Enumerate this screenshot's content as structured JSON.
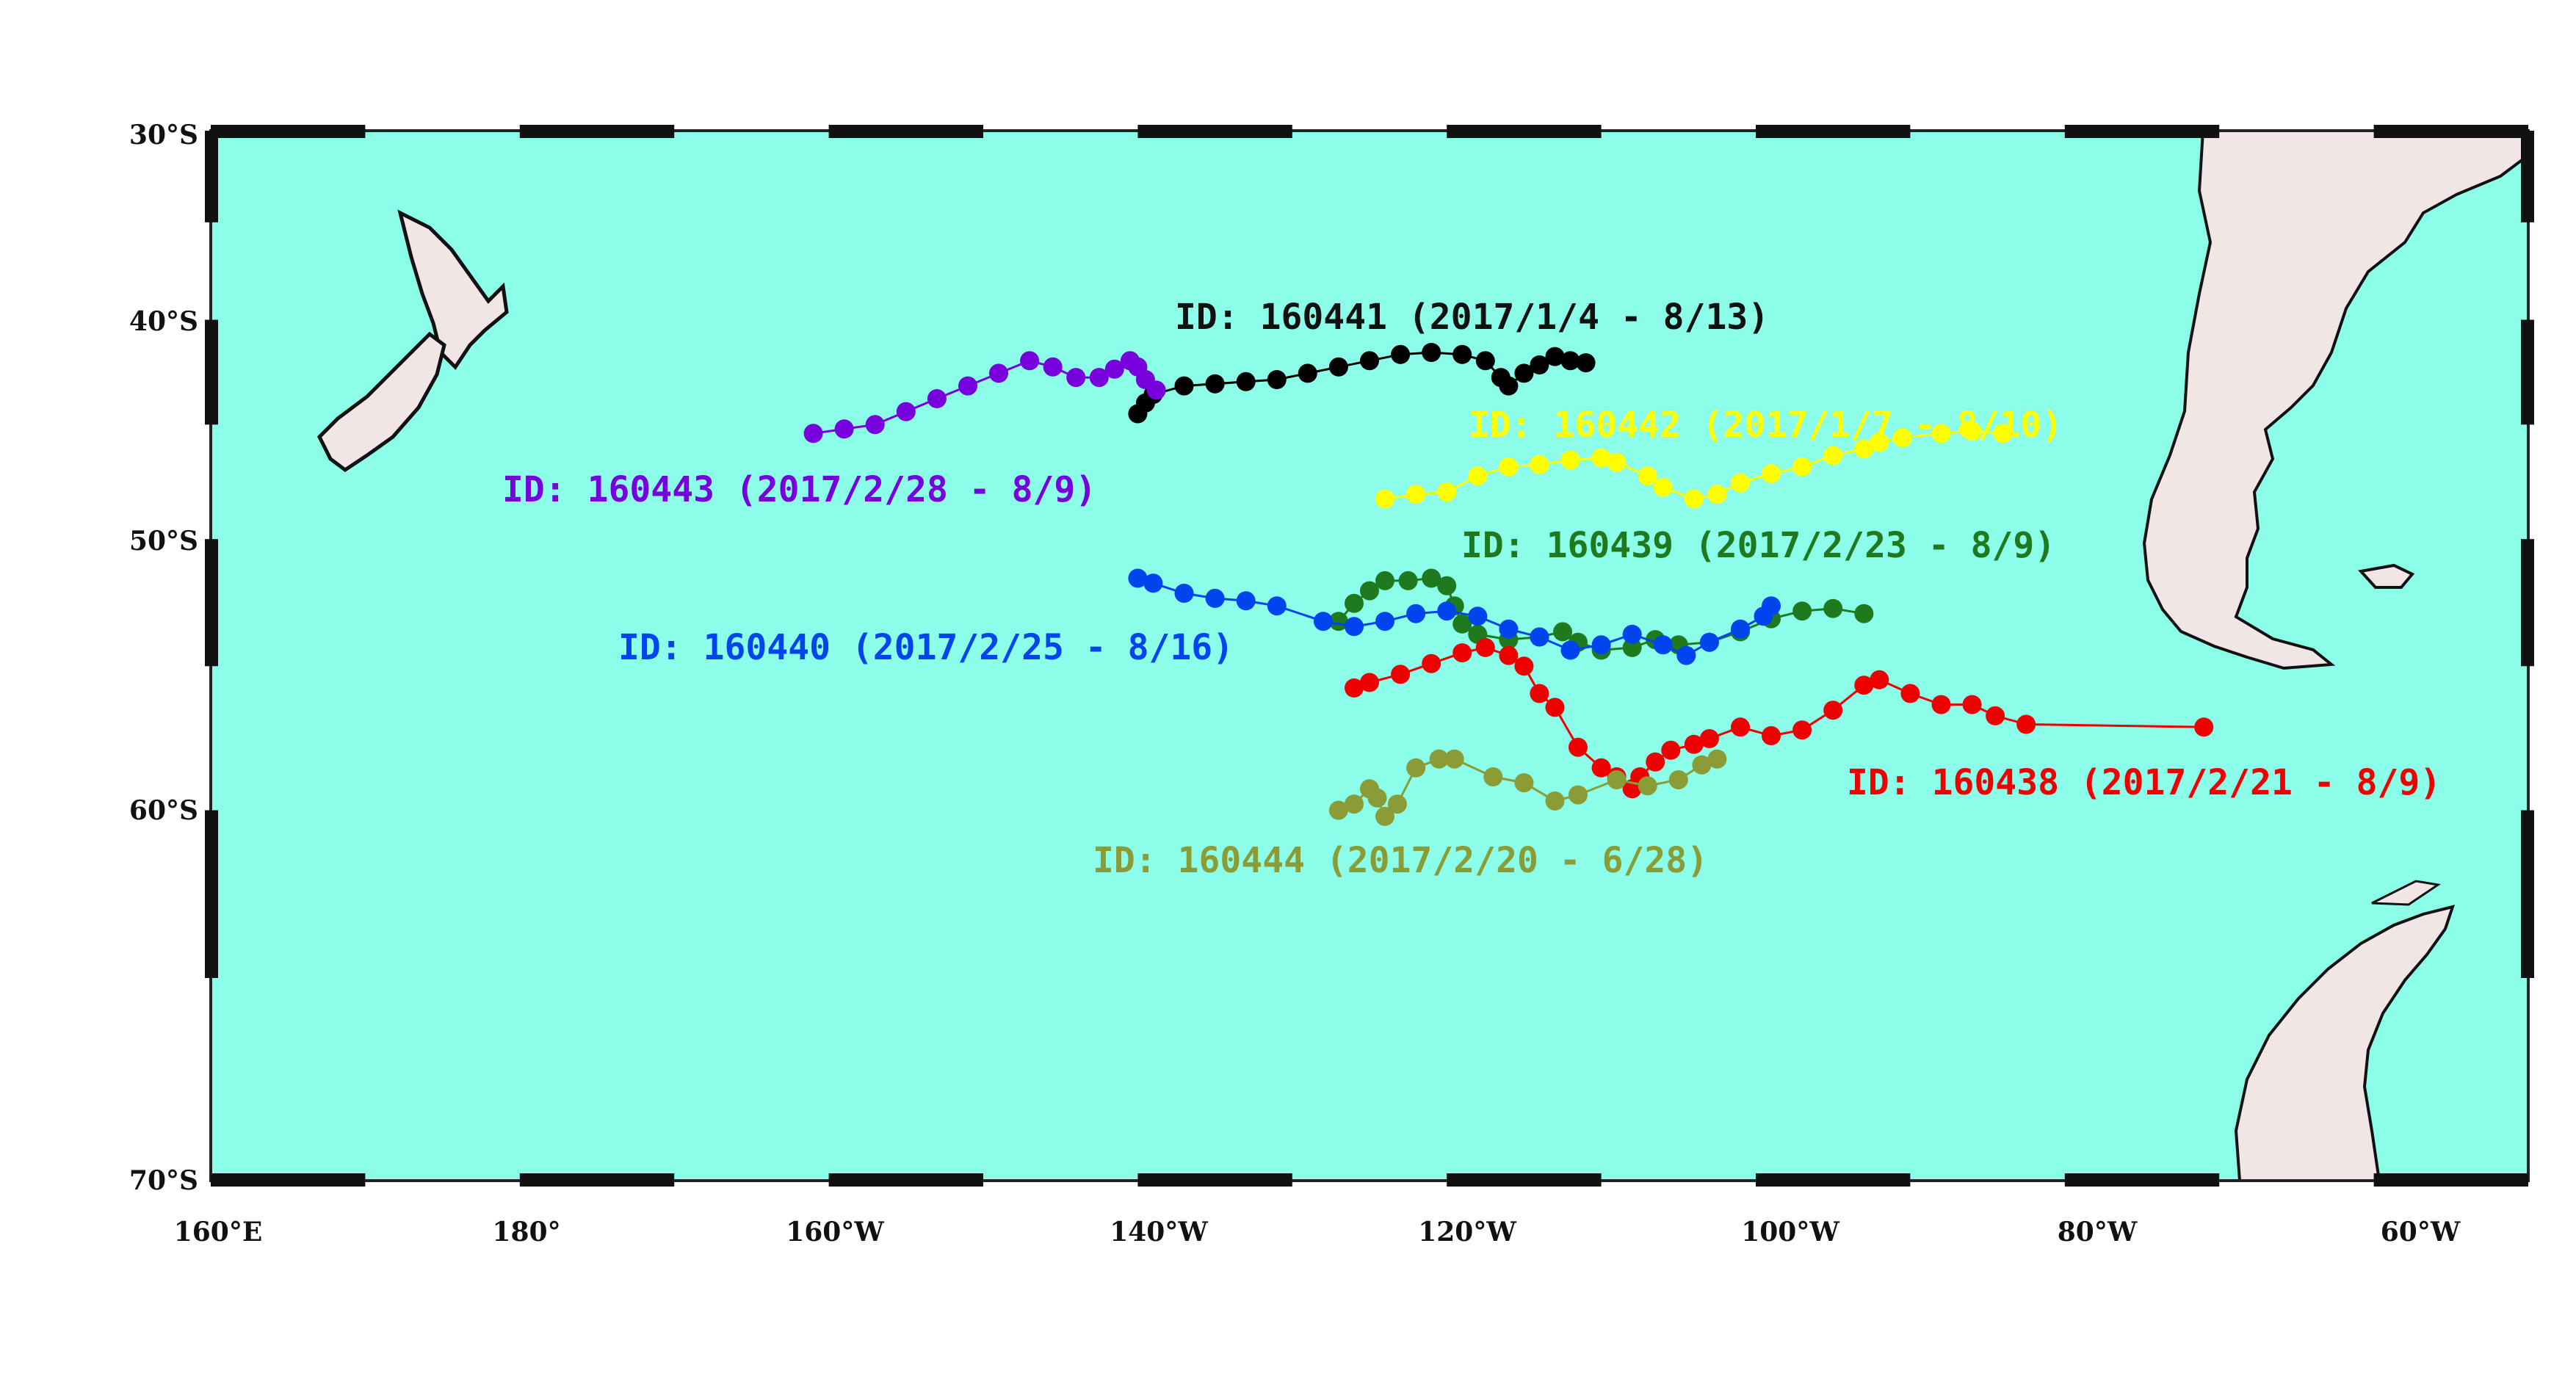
{
  "map": {
    "projection": "mercator",
    "lon_range": [
      160,
      310
    ],
    "lat_range": [
      -30,
      -70
    ],
    "ocean_color": "#8cfde8",
    "land_color": "#f2e5e6",
    "coastline_color": "#111111",
    "lat_labels": [
      "30°S",
      "40°S",
      "50°S",
      "60°S",
      "70°S"
    ],
    "lon_labels": [
      "160°E",
      "180°",
      "160°W",
      "140°W",
      "120°W",
      "100°W",
      "80°W",
      "60°W"
    ]
  },
  "chart_data": {
    "type": "scatter",
    "x_unit": "degrees longitude (east positive, 0-360)",
    "y_unit": "degrees latitude",
    "series": [
      {
        "name": "ID: 160441 (2017/1/4 - 8/13)",
        "color": "#000000",
        "points": [
          [
            -44.5,
            220
          ],
          [
            -44.0,
            220.5
          ],
          [
            -43.6,
            221
          ],
          [
            -43.2,
            223
          ],
          [
            -43.1,
            225
          ],
          [
            -43.0,
            227
          ],
          [
            -42.9,
            229
          ],
          [
            -42.6,
            231
          ],
          [
            -42.3,
            233
          ],
          [
            -42.0,
            235
          ],
          [
            -41.7,
            237
          ],
          [
            -41.6,
            239
          ],
          [
            -41.7,
            241
          ],
          [
            -42.0,
            242.5
          ],
          [
            -42.8,
            243.5
          ],
          [
            -43.2,
            244
          ],
          [
            -42.6,
            245
          ],
          [
            -42.2,
            246
          ],
          [
            -41.8,
            247
          ],
          [
            -42.0,
            248
          ],
          [
            -42.1,
            249
          ]
        ]
      },
      {
        "name": "ID: 160442 (2017/1/7 - 8/10)",
        "color": "#ffff00",
        "points": [
          [
            -48.3,
            236
          ],
          [
            -48.1,
            238
          ],
          [
            -48.0,
            240
          ],
          [
            -47.3,
            242
          ],
          [
            -46.9,
            244
          ],
          [
            -46.8,
            246
          ],
          [
            -46.6,
            248
          ],
          [
            -46.5,
            250
          ],
          [
            -46.7,
            251
          ],
          [
            -47.3,
            253
          ],
          [
            -47.8,
            254
          ],
          [
            -48.3,
            256
          ],
          [
            -48.1,
            257.5
          ],
          [
            -47.6,
            259
          ],
          [
            -47.2,
            261
          ],
          [
            -46.9,
            263
          ],
          [
            -46.4,
            265
          ],
          [
            -46.1,
            267
          ],
          [
            -45.8,
            268
          ],
          [
            -45.6,
            269.5
          ],
          [
            -45.4,
            272
          ],
          [
            -45.3,
            274
          ],
          [
            -45.4,
            276
          ]
        ]
      },
      {
        "name": "ID: 160443 (2017/2/28 - 8/9)",
        "color": "#7700dd",
        "points": [
          [
            -45.4,
            199
          ],
          [
            -45.2,
            201
          ],
          [
            -45.0,
            203
          ],
          [
            -44.4,
            205
          ],
          [
            -43.8,
            207
          ],
          [
            -43.2,
            209
          ],
          [
            -42.6,
            211
          ],
          [
            -42.0,
            213
          ],
          [
            -42.3,
            214.5
          ],
          [
            -42.8,
            216
          ],
          [
            -42.8,
            217.5
          ],
          [
            -42.4,
            218.5
          ],
          [
            -42.0,
            219.5
          ],
          [
            -42.3,
            220
          ],
          [
            -42.9,
            220.5
          ],
          [
            -43.4,
            221.2
          ]
        ]
      },
      {
        "name": "ID: 160439 (2017/2/23 - 8/9)",
        "color": "#1f7a1f",
        "points": [
          [
            -53.3,
            233
          ],
          [
            -52.6,
            234
          ],
          [
            -52.1,
            235
          ],
          [
            -51.7,
            236
          ],
          [
            -51.7,
            237.5
          ],
          [
            -51.6,
            239
          ],
          [
            -51.9,
            240
          ],
          [
            -52.7,
            240.5
          ],
          [
            -53.4,
            241
          ],
          [
            -53.8,
            242
          ],
          [
            -54.0,
            244
          ],
          [
            -53.9,
            246
          ],
          [
            -53.7,
            247.5
          ],
          [
            -54.1,
            248.5
          ],
          [
            -54.4,
            250
          ],
          [
            -54.3,
            252
          ],
          [
            -54.0,
            253.5
          ],
          [
            -54.2,
            255
          ],
          [
            -54.1,
            257
          ],
          [
            -53.7,
            259
          ],
          [
            -53.2,
            261
          ],
          [
            -52.9,
            263
          ],
          [
            -52.8,
            265
          ],
          [
            -53.0,
            267
          ]
        ]
      },
      {
        "name": "ID: 160440 (2017/2/25 - 8/16)",
        "color": "#0044ee",
        "points": [
          [
            -51.6,
            220
          ],
          [
            -51.8,
            221
          ],
          [
            -52.2,
            223
          ],
          [
            -52.4,
            225
          ],
          [
            -52.5,
            227
          ],
          [
            -52.7,
            229
          ],
          [
            -53.3,
            232
          ],
          [
            -53.5,
            234
          ],
          [
            -53.3,
            236
          ],
          [
            -53.0,
            238
          ],
          [
            -52.9,
            240
          ],
          [
            -53.1,
            242
          ],
          [
            -53.6,
            244
          ],
          [
            -53.9,
            246
          ],
          [
            -54.4,
            248
          ],
          [
            -54.2,
            250
          ],
          [
            -53.8,
            252
          ],
          [
            -54.2,
            254
          ],
          [
            -54.6,
            255.5
          ],
          [
            -54.1,
            257
          ],
          [
            -53.6,
            259
          ],
          [
            -53.1,
            260.5
          ],
          [
            -52.7,
            261
          ]
        ]
      },
      {
        "name": "ID: 160438 (2017/2/21 - 8/9)",
        "color": "#ee0000",
        "points": [
          [
            -55.8,
            234
          ],
          [
            -55.6,
            235
          ],
          [
            -55.3,
            237
          ],
          [
            -54.9,
            239
          ],
          [
            -54.5,
            241
          ],
          [
            -54.3,
            242.5
          ],
          [
            -54.6,
            244
          ],
          [
            -55.0,
            245
          ],
          [
            -56.0,
            246
          ],
          [
            -56.5,
            247
          ],
          [
            -57.9,
            248.5
          ],
          [
            -58.6,
            250
          ],
          [
            -58.9,
            251
          ],
          [
            -59.3,
            252
          ],
          [
            -58.9,
            252.5
          ],
          [
            -58.4,
            253.5
          ],
          [
            -58.0,
            254.5
          ],
          [
            -57.8,
            256
          ],
          [
            -57.6,
            257
          ],
          [
            -57.2,
            259
          ],
          [
            -57.5,
            261
          ],
          [
            -57.3,
            263
          ],
          [
            -56.6,
            265
          ],
          [
            -55.7,
            267
          ],
          [
            -55.5,
            268
          ],
          [
            -56.0,
            270
          ],
          [
            -56.4,
            272
          ],
          [
            -56.4,
            274
          ],
          [
            -56.8,
            275.5
          ],
          [
            -57.1,
            277.5
          ],
          [
            -57.2,
            289
          ]
        ]
      },
      {
        "name": "ID: 160444 (2017/2/20 - 6/28)",
        "color": "#8b9b35",
        "points": [
          [
            -60.0,
            233
          ],
          [
            -59.8,
            234
          ],
          [
            -59.3,
            235
          ],
          [
            -59.6,
            235.5
          ],
          [
            -60.2,
            236
          ],
          [
            -59.8,
            236.8
          ],
          [
            -58.6,
            238
          ],
          [
            -58.3,
            239.5
          ],
          [
            -58.3,
            240.5
          ],
          [
            -58.9,
            243
          ],
          [
            -59.1,
            245
          ],
          [
            -59.7,
            247
          ],
          [
            -59.5,
            248.5
          ],
          [
            -59.0,
            251
          ],
          [
            -59.2,
            253
          ],
          [
            -59.0,
            255
          ],
          [
            -58.5,
            256.5
          ],
          [
            -58.3,
            257.5
          ]
        ]
      }
    ]
  }
}
